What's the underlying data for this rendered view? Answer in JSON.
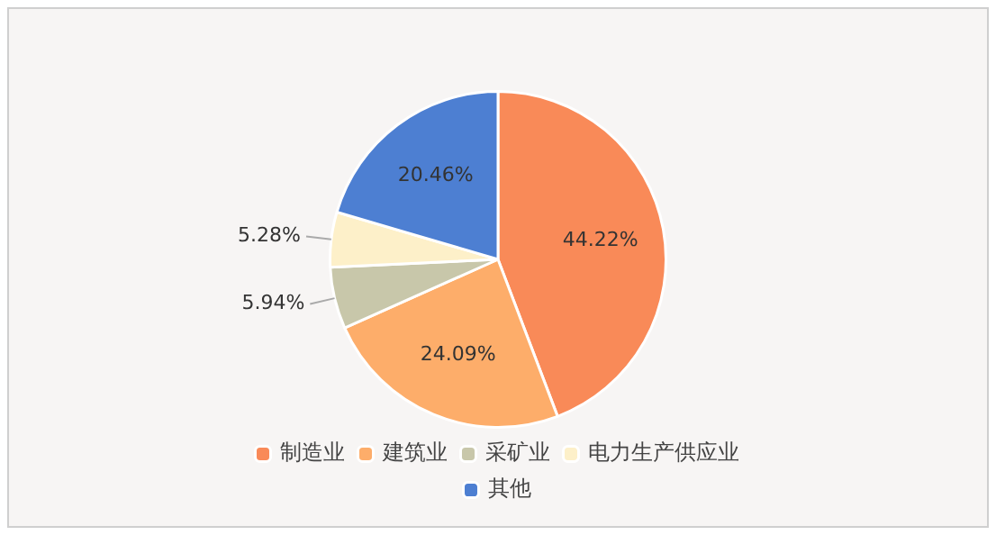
{
  "chart_data": {
    "type": "pie",
    "categories": [
      "制造业",
      "建筑业",
      "采矿业",
      "电力生产供应业",
      "其他"
    ],
    "values": [
      44.22,
      24.09,
      5.94,
      5.28,
      20.46
    ],
    "colors": [
      "#f98a58",
      "#fdad6a",
      "#c8c7aa",
      "#fdf0c9",
      "#4d7fd2"
    ],
    "value_labels": [
      "44.22%",
      "24.09%",
      "5.94%",
      "5.28%",
      "20.46%"
    ],
    "legend": "bottom"
  }
}
